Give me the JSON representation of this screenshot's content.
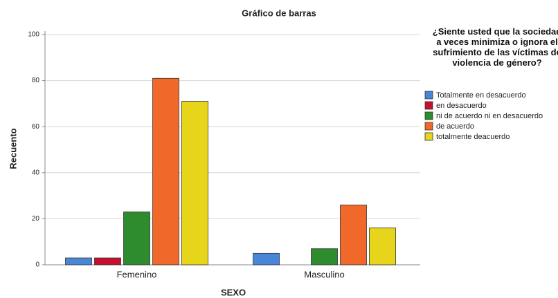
{
  "chart_data": {
    "type": "bar",
    "title": "Gráfico de barras",
    "x_label": "SEXO",
    "y_label": "Recuento",
    "legend_title": "¿Siente usted que la sociedad a veces minimiza o ignora el sufrimiento de las víctimas de violencia de género?",
    "categories": [
      "Femenino",
      "Masculino"
    ],
    "series": [
      {
        "name": "Totalmente en desacuerdo",
        "color": "#4a86d8",
        "values": [
          3,
          5
        ]
      },
      {
        "name": "en desacuerdo",
        "color": "#c8102e",
        "values": [
          3,
          0
        ]
      },
      {
        "name": "ni de acuerdo ni en desacuerdo",
        "color": "#2e8b2e",
        "values": [
          23,
          7
        ]
      },
      {
        "name": "de acuerdo",
        "color": "#f0682a",
        "values": [
          81,
          26
        ]
      },
      {
        "name": "totalmente deacuerdo",
        "color": "#e6d51a",
        "values": [
          71,
          16
        ]
      }
    ],
    "ylim": [
      0,
      100
    ],
    "yticks": [
      0,
      20,
      40,
      60,
      80,
      100
    ],
    "grid": true,
    "legend": "right"
  }
}
